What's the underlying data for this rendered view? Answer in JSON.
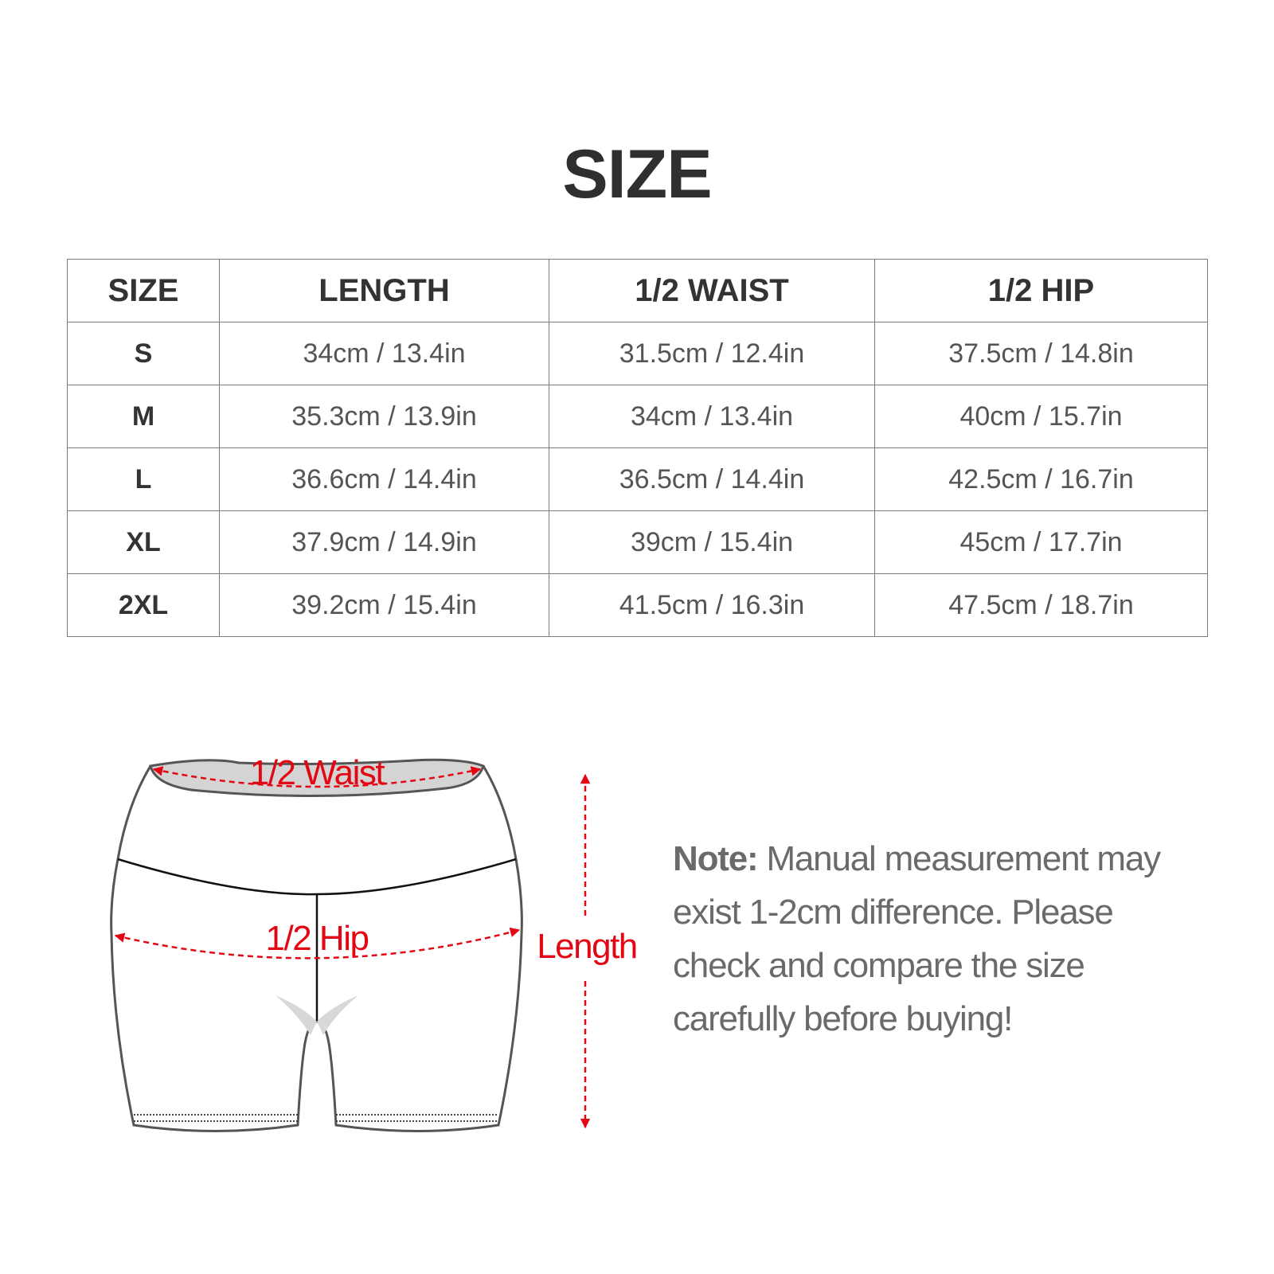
{
  "title": "SIZE",
  "table": {
    "headers": [
      "SIZE",
      "LENGTH",
      "1/2 WAIST",
      "1/2 HIP"
    ],
    "rows": [
      [
        "S",
        "34cm / 13.4in",
        "31.5cm / 12.4in",
        "37.5cm / 14.8in"
      ],
      [
        "M",
        "35.3cm / 13.9in",
        "34cm / 13.4in",
        "40cm / 15.7in"
      ],
      [
        "L",
        "36.6cm / 14.4in",
        "36.5cm / 14.4in",
        "42.5cm / 16.7in"
      ],
      [
        "XL",
        "37.9cm / 14.9in",
        "39cm / 15.4in",
        "45cm / 17.7in"
      ],
      [
        "2XL",
        "39.2cm / 15.4in",
        "41.5cm / 16.3in",
        "47.5cm / 18.7in"
      ]
    ]
  },
  "diagram": {
    "waist_label": "1/2 Waist",
    "hip_label": "1/2 Hip",
    "length_label": "Length",
    "accent_color": "#e30613"
  },
  "note": {
    "label": "Note:",
    "text": " Manual measurement may exist 1-2cm difference. Please check and compare the size carefully before buying!"
  }
}
